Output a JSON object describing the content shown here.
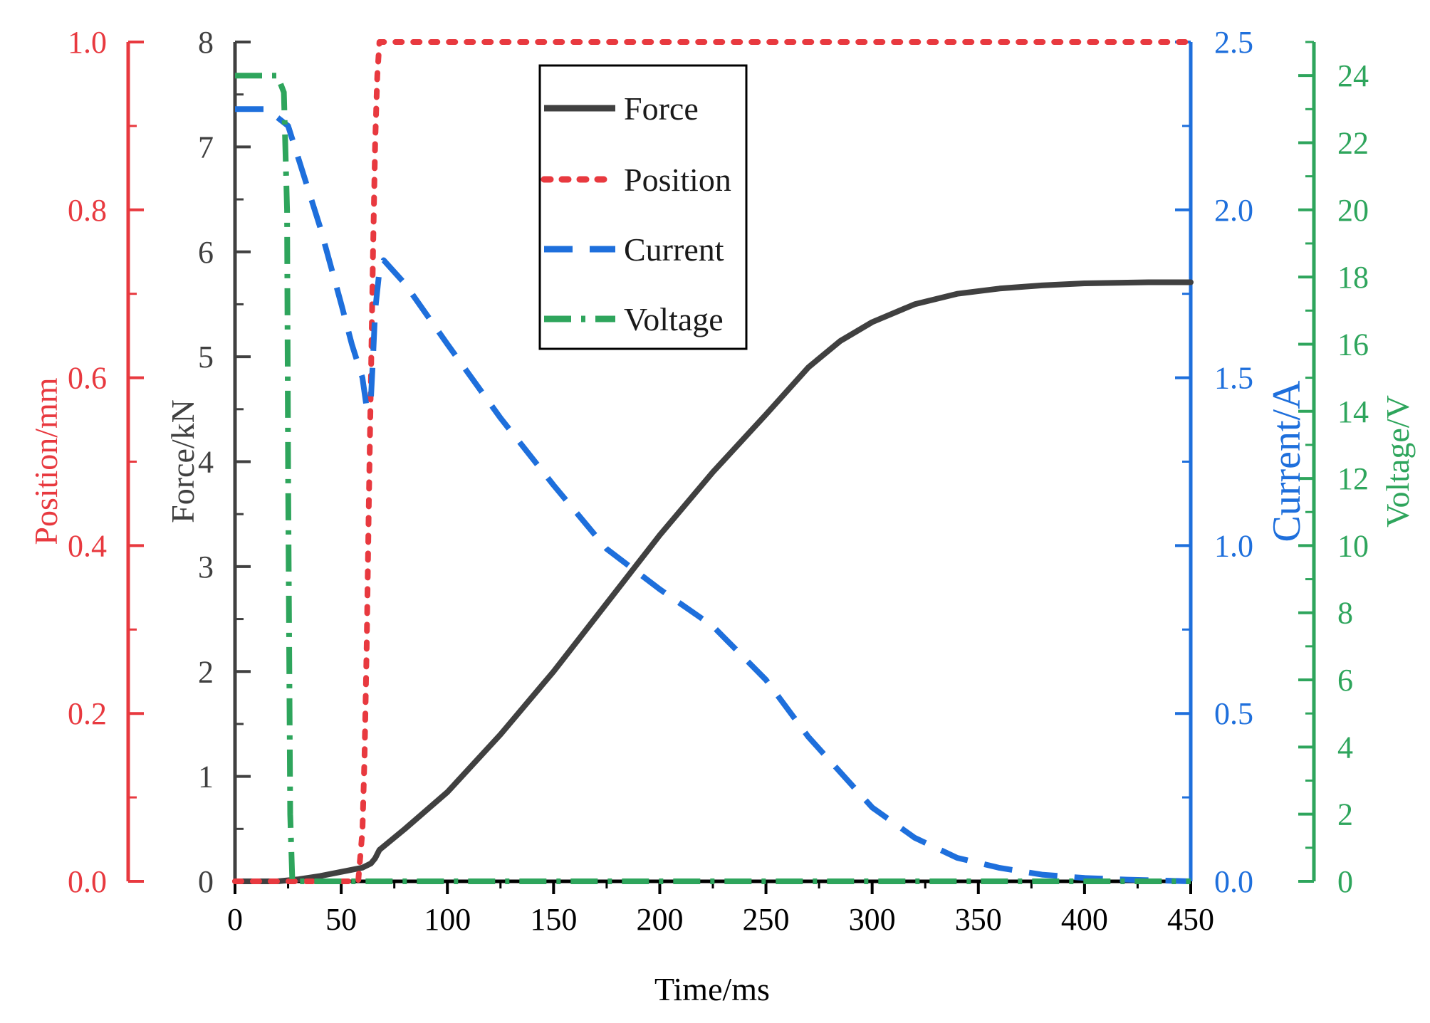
{
  "chart_data": {
    "type": "line",
    "title": "",
    "xlabel": "Time/ms",
    "xlim": [
      0,
      450
    ],
    "xticks": [
      "0",
      "50",
      "100",
      "150",
      "200",
      "250",
      "300",
      "350",
      "400",
      "450"
    ],
    "xtick_values": [
      0,
      50,
      100,
      150,
      200,
      250,
      300,
      350,
      400,
      450
    ],
    "legend_position": "top-center",
    "axes": {
      "force": {
        "label": "Force/kN",
        "color": "#404040",
        "ylim": [
          0,
          8
        ],
        "ticks": [
          "0",
          "1",
          "2",
          "3",
          "4",
          "5",
          "6",
          "7",
          "8"
        ],
        "tick_values": [
          0,
          1,
          2,
          3,
          4,
          5,
          6,
          7,
          8
        ]
      },
      "position": {
        "label": "Position/mm",
        "color": "#e8393f",
        "ylim": [
          0,
          1
        ],
        "ticks": [
          "0.0",
          "0.2",
          "0.4",
          "0.6",
          "0.8",
          "1.0"
        ],
        "tick_values": [
          0,
          0.2,
          0.4,
          0.6,
          0.8,
          1.0
        ]
      },
      "current": {
        "label": "Current/A",
        "color": "#1e6fdc",
        "ylim": [
          0,
          2.5
        ],
        "ticks": [
          "0.0",
          "0.5",
          "1.0",
          "1.5",
          "2.0",
          "2.5"
        ],
        "tick_values": [
          0,
          0.5,
          1.0,
          1.5,
          2.0,
          2.5
        ]
      },
      "voltage": {
        "label": "Voltage/V",
        "color": "#2ea55c",
        "ylim": [
          0,
          25
        ],
        "ticks": [
          "0",
          "2",
          "4",
          "6",
          "8",
          "10",
          "12",
          "14",
          "16",
          "18",
          "20",
          "22",
          "24"
        ],
        "tick_values": [
          0,
          2,
          4,
          6,
          8,
          10,
          12,
          14,
          16,
          18,
          20,
          22,
          24
        ]
      }
    },
    "series": [
      {
        "name": "Force",
        "axis": "force",
        "color": "#404040",
        "style": "solid",
        "x": [
          0,
          20,
          30,
          40,
          50,
          60,
          64,
          66,
          68,
          80,
          100,
          125,
          150,
          175,
          200,
          225,
          250,
          270,
          285,
          300,
          320,
          340,
          360,
          380,
          400,
          430,
          450
        ],
        "y": [
          0,
          0,
          0.02,
          0.05,
          0.09,
          0.13,
          0.17,
          0.22,
          0.3,
          0.5,
          0.85,
          1.4,
          2.0,
          2.65,
          3.3,
          3.9,
          4.45,
          4.9,
          5.15,
          5.33,
          5.5,
          5.6,
          5.65,
          5.68,
          5.7,
          5.71,
          5.71
        ]
      },
      {
        "name": "Position",
        "axis": "position",
        "color": "#e8393f",
        "style": "dotted",
        "x": [
          0,
          58,
          60,
          61,
          62,
          63,
          64,
          65,
          66,
          67,
          68,
          70,
          450
        ],
        "y": [
          0,
          0,
          0.06,
          0.15,
          0.28,
          0.45,
          0.6,
          0.75,
          0.88,
          0.96,
          1.0,
          1.0,
          1.0
        ]
      },
      {
        "name": "Current",
        "axis": "current",
        "color": "#1e6fdc",
        "style": "dashed",
        "x": [
          0,
          15,
          25,
          30,
          40,
          50,
          55,
          60,
          62,
          64,
          65,
          66,
          68,
          70,
          80,
          100,
          125,
          150,
          175,
          200,
          225,
          250,
          270,
          290,
          300,
          320,
          340,
          360,
          380,
          400,
          420,
          450
        ],
        "y": [
          2.3,
          2.3,
          2.25,
          2.15,
          1.95,
          1.72,
          1.6,
          1.5,
          1.41,
          1.44,
          1.56,
          1.7,
          1.82,
          1.85,
          1.78,
          1.6,
          1.38,
          1.18,
          0.99,
          0.87,
          0.76,
          0.6,
          0.43,
          0.29,
          0.22,
          0.13,
          0.07,
          0.04,
          0.02,
          0.01,
          0.005,
          0.0
        ]
      },
      {
        "name": "Voltage",
        "axis": "voltage",
        "color": "#2ea55c",
        "style": "dashdot",
        "x": [
          0,
          20,
          23,
          24.5,
          25,
          26,
          27,
          450
        ],
        "y": [
          24,
          24,
          23.5,
          20,
          12,
          2,
          0,
          0
        ]
      }
    ]
  }
}
